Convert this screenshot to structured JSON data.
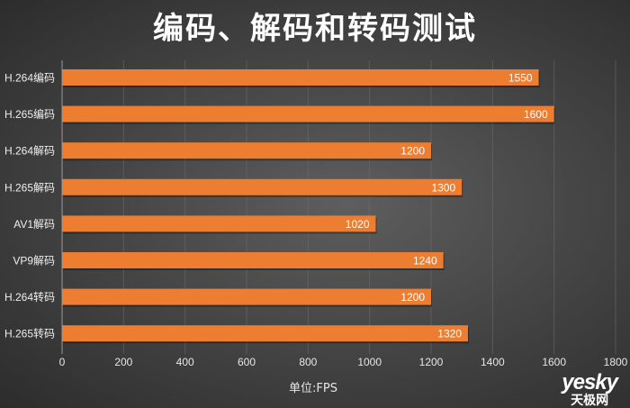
{
  "chart_data": {
    "type": "bar",
    "orientation": "horizontal",
    "title": "编码、解码和转码测试",
    "xlabel": "单位:FPS",
    "ylabel": "",
    "categories": [
      "H.264编码",
      "H.265编码",
      "H.264解码",
      "H.265解码",
      "AV1解码",
      "VP9解码",
      "H.264转码",
      "H.265转码"
    ],
    "values": [
      1550,
      1600,
      1200,
      1300,
      1020,
      1240,
      1200,
      1320
    ],
    "xlim": [
      0,
      1800
    ],
    "xticks": [
      0,
      200,
      400,
      600,
      800,
      1000,
      1200,
      1400,
      1600,
      1800
    ],
    "grid": true,
    "data_labels": true,
    "bar_color": "#ed7d31"
  },
  "watermark": {
    "line1": "yesky",
    "line2": "天极网"
  }
}
